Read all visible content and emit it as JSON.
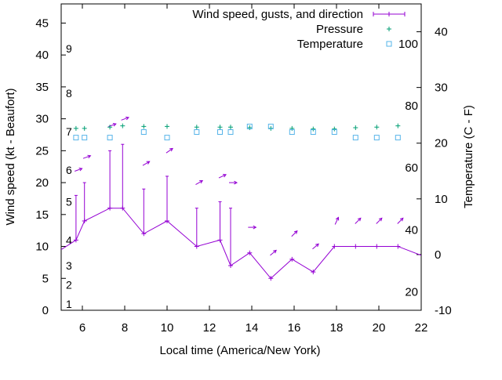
{
  "chart_data": {
    "type": "line",
    "xlabel": "Local time (America/New York)",
    "ylabel": "Wind speed (kt - Beaufort)",
    "y2label": "Temperature (C - F)",
    "xlim": [
      5,
      22
    ],
    "ylim": [
      0,
      48
    ],
    "y2lim": [
      -10,
      45
    ],
    "x_ticks": [
      6,
      8,
      10,
      12,
      14,
      16,
      18,
      20,
      22
    ],
    "y_ticks": [
      0,
      5,
      10,
      15,
      20,
      25,
      30,
      35,
      40,
      45
    ],
    "y2_ticks": [
      -10,
      0,
      10,
      20,
      30,
      40
    ],
    "fahrenheit_labels": [
      {
        "label": "20",
        "c": -6.7
      },
      {
        "label": "40",
        "c": 4.4
      },
      {
        "label": "60",
        "c": 15.6
      },
      {
        "label": "80",
        "c": 26.7
      },
      {
        "label": "100",
        "c": 37.8
      }
    ],
    "beaufort_labels": [
      {
        "label": "1",
        "kt": 1
      },
      {
        "label": "2",
        "kt": 4
      },
      {
        "label": "3",
        "kt": 7
      },
      {
        "label": "4",
        "kt": 11
      },
      {
        "label": "5",
        "kt": 17
      },
      {
        "label": "6",
        "kt": 22
      },
      {
        "label": "7",
        "kt": 28
      },
      {
        "label": "8",
        "kt": 34
      },
      {
        "label": "9",
        "kt": 41
      }
    ],
    "legend": [
      "Wind speed, gusts, and direction",
      "Pressure",
      "Temperature"
    ],
    "legend_position": "top-right",
    "colors": {
      "wind": "#9400d3",
      "pressure": "#009e73",
      "temperature": "#56b4e9"
    },
    "series": [
      {
        "name": "Wind speed, gusts, and direction",
        "x": [
          5.0,
          5.7,
          6.1,
          7.3,
          7.9,
          8.9,
          10.0,
          11.4,
          12.5,
          13.0,
          13.9,
          14.9,
          15.9,
          16.9,
          17.9,
          18.9,
          19.9,
          20.9,
          22.0
        ],
        "y": [
          9.5,
          11,
          14,
          16,
          16,
          12,
          14,
          10,
          11,
          7,
          9,
          5,
          8,
          6,
          10,
          10,
          10,
          10,
          8.6
        ],
        "gusts": [
          null,
          18,
          20,
          25,
          26,
          19,
          21,
          16,
          17,
          16,
          null,
          null,
          null,
          null,
          null,
          null,
          null,
          null,
          null
        ],
        "arrow_y": [
          null,
          22,
          24,
          29,
          30,
          23,
          25,
          20,
          21,
          20,
          13,
          9,
          12,
          10,
          14,
          14,
          14,
          14,
          null
        ],
        "arrow_dir": [
          null,
          20,
          20,
          20,
          20,
          30,
          35,
          30,
          25,
          0,
          0,
          40,
          45,
          40,
          65,
          45,
          45,
          45,
          null
        ]
      },
      {
        "name": "Pressure",
        "x": [
          5.7,
          6.1,
          7.3,
          7.9,
          8.9,
          10.0,
          11.4,
          12.5,
          13.0,
          13.9,
          14.9,
          15.9,
          16.9,
          17.9,
          18.9,
          19.9,
          20.9
        ],
        "y": [
          28.5,
          28.5,
          28.7,
          28.9,
          28.8,
          28.8,
          28.7,
          28.7,
          28.7,
          28.6,
          28.5,
          28.5,
          28.4,
          28.4,
          28.6,
          28.7,
          28.9
        ]
      },
      {
        "name": "Temperature",
        "x": [
          5.7,
          6.1,
          7.3,
          8.9,
          10.0,
          11.4,
          12.5,
          13.0,
          13.9,
          14.9,
          15.9,
          16.9,
          17.9,
          18.9,
          19.9,
          20.9
        ],
        "y": [
          21,
          21,
          21,
          22,
          21,
          22,
          22,
          22,
          23,
          23,
          22,
          22,
          22,
          21,
          21,
          21
        ]
      }
    ]
  }
}
